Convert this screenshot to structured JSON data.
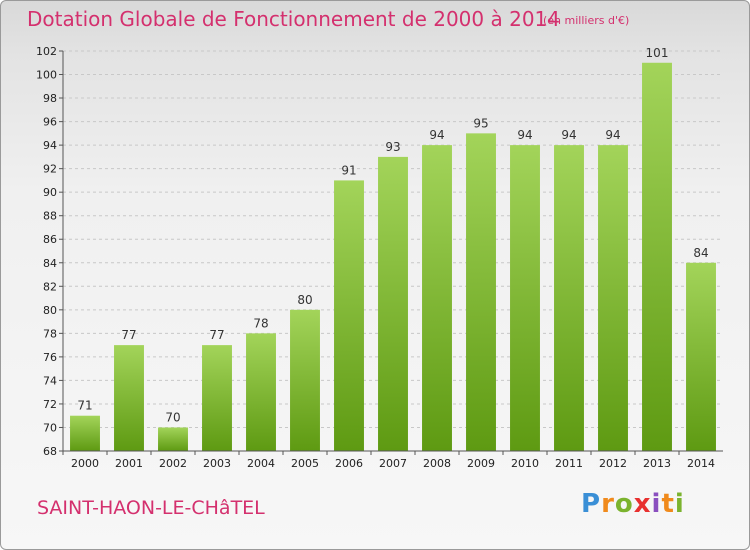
{
  "header": {
    "title": "Dotation Globale de Fonctionnement de 2000 à 2014",
    "unit": "(en milliers d'€)"
  },
  "footer": {
    "commune": "SAINT-HAON-LE-CHâTEL",
    "brand": "Proxiti"
  },
  "colors": {
    "bar_top": "#a3d45a",
    "bar_bottom": "#5e9a12",
    "title": "#d4306e"
  },
  "chart_data": {
    "type": "bar",
    "title": "Dotation Globale de Fonctionnement de 2000 à 2014",
    "subtitle": "(en milliers d'€)",
    "xlabel": "",
    "ylabel": "",
    "categories": [
      "2000",
      "2001",
      "2002",
      "2003",
      "2004",
      "2005",
      "2006",
      "2007",
      "2008",
      "2009",
      "2010",
      "2011",
      "2012",
      "2013",
      "2014"
    ],
    "values": [
      71,
      77,
      70,
      77,
      78,
      80,
      91,
      93,
      94,
      95,
      94,
      94,
      94,
      101,
      84
    ],
    "ylim": [
      68,
      102
    ],
    "yticks": [
      68,
      70,
      72,
      74,
      76,
      78,
      80,
      82,
      84,
      86,
      88,
      90,
      92,
      94,
      96,
      98,
      100,
      102
    ],
    "grid": true,
    "legend": "none"
  }
}
